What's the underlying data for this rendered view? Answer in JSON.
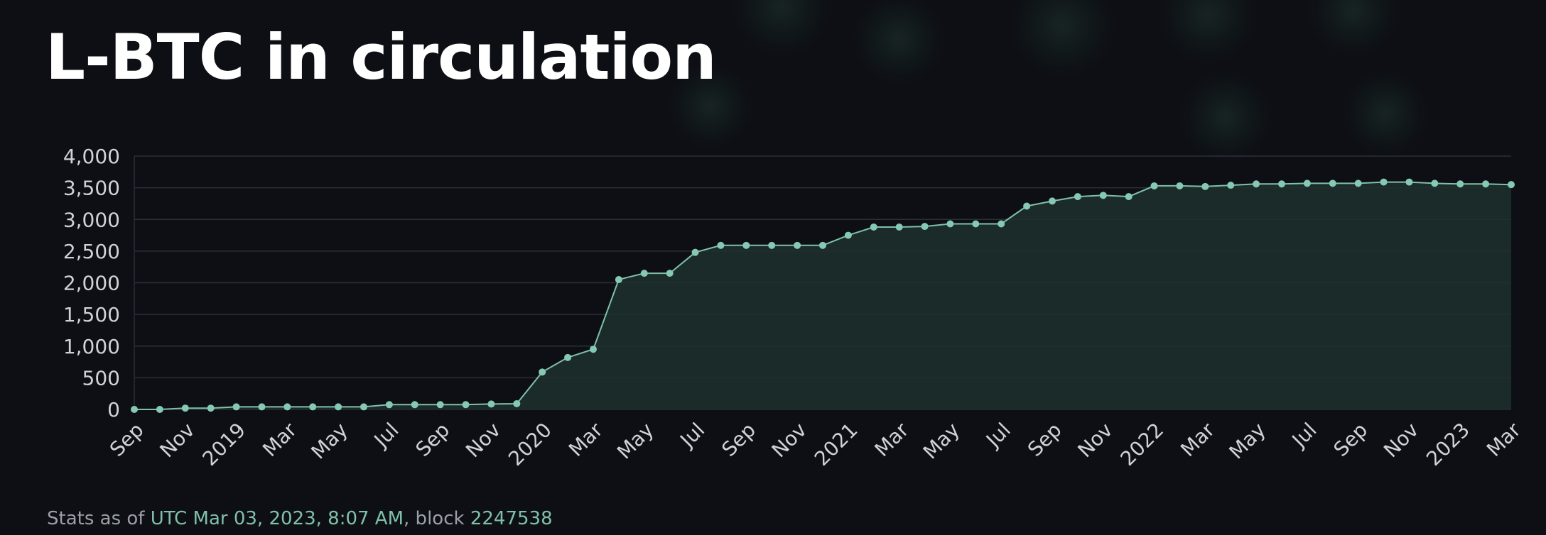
{
  "title": "L-BTC in circulation",
  "footer": {
    "prefix": "Stats as of",
    "timestamp": "UTC Mar 03, 2023, 8:07 AM",
    "separator": ", block",
    "block": "2247538"
  },
  "colors": {
    "background": "#0d0f14",
    "line": "#7fc0aa",
    "point": "#86c9b2",
    "area": "#1f302d",
    "grid": "#2a2f3a",
    "accent": "#7fc0aa"
  },
  "chart_data": {
    "type": "area",
    "title": "L-BTC in circulation",
    "xlabel": "",
    "ylabel": "",
    "grid": true,
    "legend": "none",
    "ylim": [
      0,
      4000
    ],
    "yticks": [
      "0",
      "500",
      "1,000",
      "1,500",
      "2,000",
      "2,500",
      "3,000",
      "3,500",
      "4,000"
    ],
    "xticks": [
      "Sep",
      "Nov",
      "2019",
      "Mar",
      "May",
      "Jul",
      "Sep",
      "Nov",
      "2020",
      "Mar",
      "May",
      "Jul",
      "Sep",
      "Nov",
      "2021",
      "Mar",
      "May",
      "Jul",
      "Sep",
      "Nov",
      "2022",
      "Mar",
      "May",
      "Jul",
      "Sep",
      "Nov",
      "2023",
      "Mar"
    ],
    "x": [
      "2018-09",
      "2018-10",
      "2018-11",
      "2018-12",
      "2019-01",
      "2019-02",
      "2019-03",
      "2019-04",
      "2019-05",
      "2019-06",
      "2019-07",
      "2019-08",
      "2019-09",
      "2019-10",
      "2019-11",
      "2019-12",
      "2020-01",
      "2020-02",
      "2020-03",
      "2020-04",
      "2020-05",
      "2020-06",
      "2020-07",
      "2020-08",
      "2020-09",
      "2020-10",
      "2020-11",
      "2020-12",
      "2021-01",
      "2021-02",
      "2021-03",
      "2021-04",
      "2021-05",
      "2021-06",
      "2021-07",
      "2021-08",
      "2021-09",
      "2021-10",
      "2021-11",
      "2021-12",
      "2022-01",
      "2022-02",
      "2022-03",
      "2022-04",
      "2022-05",
      "2022-06",
      "2022-07",
      "2022-08",
      "2022-09",
      "2022-10",
      "2022-11",
      "2022-12",
      "2023-01",
      "2023-02",
      "2023-03"
    ],
    "series": [
      {
        "values": [
          0,
          0,
          20,
          20,
          40,
          40,
          40,
          40,
          40,
          40,
          75,
          75,
          75,
          75,
          85,
          90,
          590,
          820,
          950,
          2050,
          2150,
          2150,
          2480,
          2590,
          2590,
          2590,
          2590,
          2590,
          2750,
          2880,
          2880,
          2890,
          2930,
          2930,
          2930,
          3210,
          3290,
          3360,
          3380,
          3360,
          3530,
          3530,
          3520,
          3540,
          3560,
          3560,
          3570,
          3570,
          3570,
          3590,
          3590,
          3570,
          3560,
          3560,
          3550
        ]
      }
    ]
  }
}
